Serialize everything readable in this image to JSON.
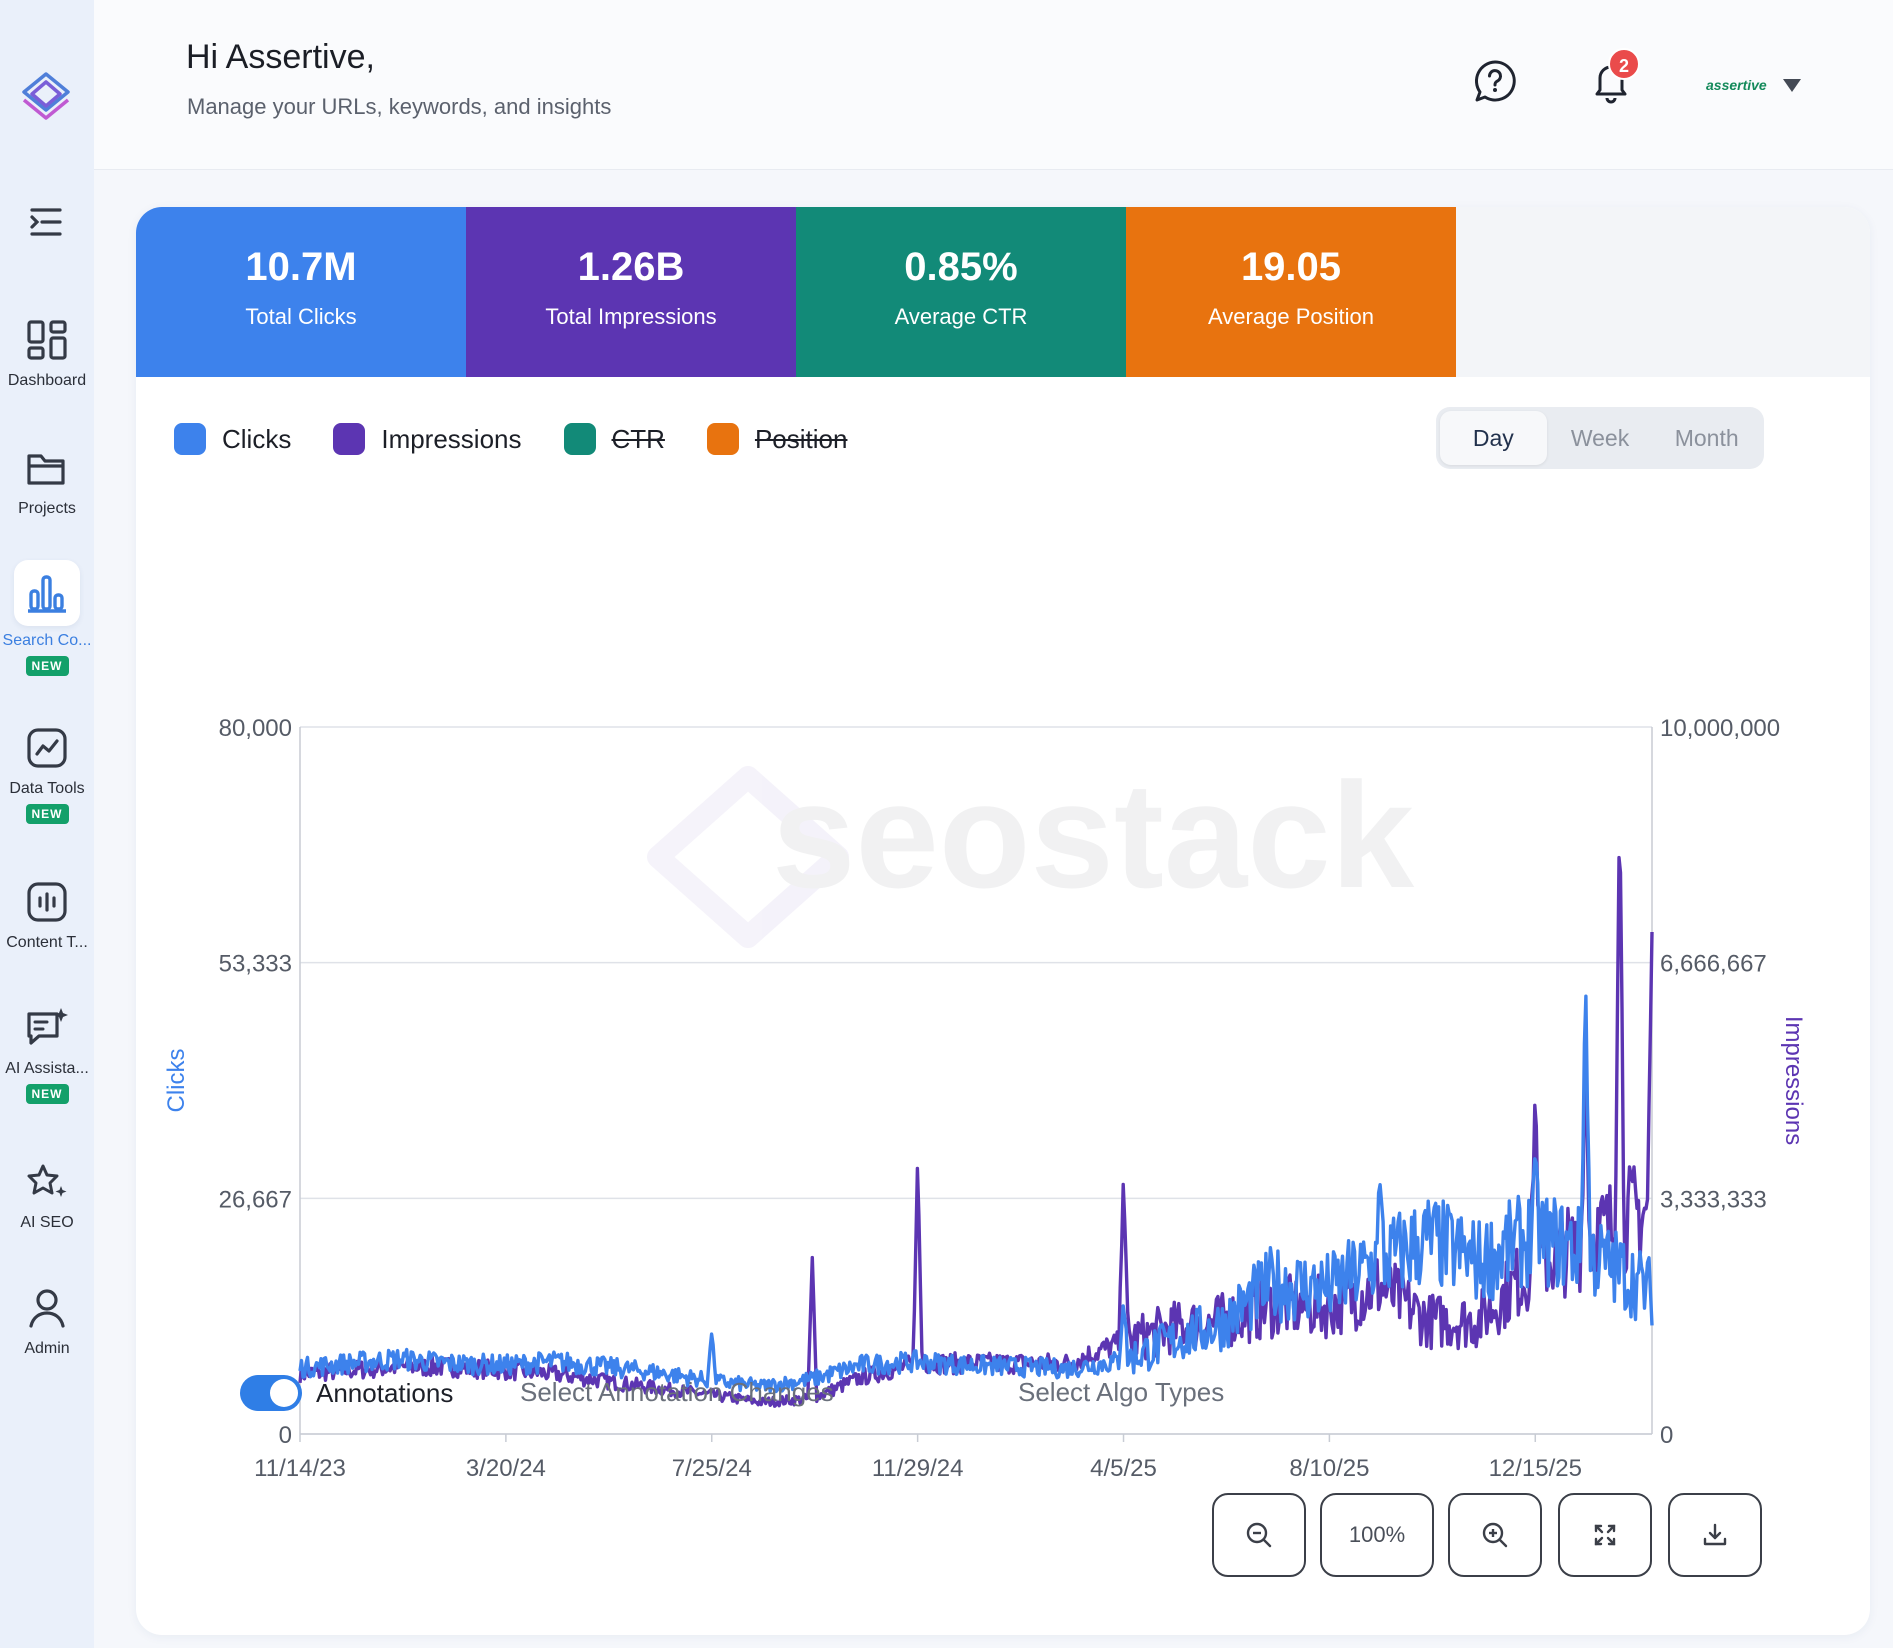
{
  "header": {
    "greeting": "Hi Assertive,",
    "subtitle": "Manage your URLs, keywords, and insights",
    "notification_count": "2",
    "user_name": "assertive"
  },
  "sidebar": {
    "items": [
      {
        "label": "Dashboard",
        "icon": "dashboard-grid-icon",
        "badge": ""
      },
      {
        "label": "Projects",
        "icon": "folder-icon",
        "badge": ""
      },
      {
        "label": "Search Co...",
        "icon": "bar-chart-icon",
        "badge": "NEW",
        "active": true
      },
      {
        "label": "Data Tools",
        "icon": "trend-line-icon",
        "badge": "NEW"
      },
      {
        "label": "Content T...",
        "icon": "audio-wave-icon",
        "badge": ""
      },
      {
        "label": "AI Assista...",
        "icon": "chat-sparkle-icon",
        "badge": "NEW"
      },
      {
        "label": "AI SEO",
        "icon": "star-sparkle-icon",
        "badge": ""
      },
      {
        "label": "Admin",
        "icon": "user-icon",
        "badge": ""
      }
    ]
  },
  "kpis": [
    {
      "value": "10.7M",
      "label": "Total Clicks",
      "color": "#3d82ec"
    },
    {
      "value": "1.26B",
      "label": "Total Impressions",
      "color": "#5c35b2"
    },
    {
      "value": "0.85%",
      "label": "Average CTR",
      "color": "#128a78"
    },
    {
      "value": "19.05",
      "label": "Average Position",
      "color": "#e8730f"
    }
  ],
  "legend": [
    {
      "label": "Clicks",
      "color": "#3d82ec",
      "enabled": true
    },
    {
      "label": "Impressions",
      "color": "#5c35b2",
      "enabled": true
    },
    {
      "label": "CTR",
      "color": "#128a78",
      "enabled": false
    },
    {
      "label": "Position",
      "color": "#e8730f",
      "enabled": false
    }
  ],
  "period": {
    "options": [
      "Day",
      "Week",
      "Month"
    ],
    "selected": "Day"
  },
  "chart_data": {
    "type": "line",
    "x_tick_labels": [
      "11/14/23",
      "3/20/24",
      "7/25/24",
      "11/29/24",
      "4/5/25",
      "8/10/25",
      "12/15/25"
    ],
    "y_left_label": "Clicks",
    "y_left_ticks": [
      "80,000",
      "53,333",
      "26,667",
      "0"
    ],
    "y_left_range": [
      0,
      80000
    ],
    "y_right_label": "Impressions",
    "y_right_ticks": [
      "10,000,000",
      "6,666,667",
      "3,333,333",
      "0"
    ],
    "y_right_range": [
      0,
      10000000
    ],
    "grid": true,
    "watermark": "seostack",
    "series": [
      {
        "name": "Clicks",
        "axis": "left",
        "color": "#3d82ec",
        "x": [
          "11/14/23",
          "12/14/23",
          "1/14/24",
          "2/14/24",
          "3/20/24",
          "4/20/24",
          "5/20/24",
          "6/20/24",
          "7/25/24",
          "8/25/24",
          "9/25/24",
          "10/25/24",
          "11/29/24",
          "12/29/24",
          "1/29/25",
          "3/1/25",
          "4/5/25",
          "5/5/25",
          "6/5/25",
          "7/5/25",
          "8/10/25",
          "9/10/25",
          "10/10/25",
          "11/10/25",
          "12/15/25",
          "1/15/26",
          "2/5/26",
          "2/25/26"
        ],
        "y": [
          7500,
          8000,
          8500,
          8000,
          7800,
          8200,
          7600,
          7000,
          6000,
          5400,
          6200,
          7800,
          8200,
          7800,
          7600,
          7400,
          8300,
          10500,
          12500,
          17000,
          16500,
          19500,
          22000,
          19500,
          22500,
          20500,
          18500,
          16000
        ],
        "spikes": [
          {
            "x": "7/25/24",
            "y": 11500
          },
          {
            "x": "4/5/25",
            "y": 15000
          },
          {
            "x": "9/10/25",
            "y": 29000
          },
          {
            "x": "12/15/25",
            "y": 31500
          },
          {
            "x": "1/15/26",
            "y": 52000
          }
        ]
      },
      {
        "name": "Impressions",
        "axis": "right",
        "color": "#5c35b2",
        "x": [
          "11/14/23",
          "12/14/23",
          "1/14/24",
          "2/14/24",
          "3/20/24",
          "4/20/24",
          "5/20/24",
          "6/20/24",
          "7/25/24",
          "8/25/24",
          "9/25/24",
          "10/25/24",
          "11/29/24",
          "12/29/24",
          "1/29/25",
          "3/1/25",
          "4/5/25",
          "5/5/25",
          "6/5/25",
          "7/5/25",
          "8/10/25",
          "9/10/25",
          "10/10/25",
          "11/10/25",
          "12/15/25",
          "1/15/26",
          "2/5/26",
          "2/25/26"
        ],
        "y": [
          850000,
          900000,
          950000,
          950000,
          900000,
          850000,
          750000,
          650000,
          550000,
          450000,
          500000,
          800000,
          1000000,
          1000000,
          1000000,
          1000000,
          1300000,
          1500000,
          1600000,
          1800000,
          1800000,
          2100000,
          1600000,
          1600000,
          2400000,
          2700000,
          3000000,
          3200000
        ],
        "spikes": [
          {
            "x": "9/25/24",
            "y": 2500000
          },
          {
            "x": "11/29/24",
            "y": 3900000
          },
          {
            "x": "4/5/25",
            "y": 3700000
          },
          {
            "x": "12/15/25",
            "y": 4900000
          },
          {
            "x": "1/15/26",
            "y": 5300000
          },
          {
            "x": "2/5/26",
            "y": 9100000
          },
          {
            "x": "2/25/26",
            "y": 7100000
          }
        ]
      }
    ]
  },
  "annotations": {
    "toggle_label": "Annotations",
    "toggle_on": true,
    "changes_placeholder": "Select Annotation Changes",
    "algo_placeholder": "Select Algo Types"
  },
  "controls": {
    "zoom_level": "100%"
  }
}
